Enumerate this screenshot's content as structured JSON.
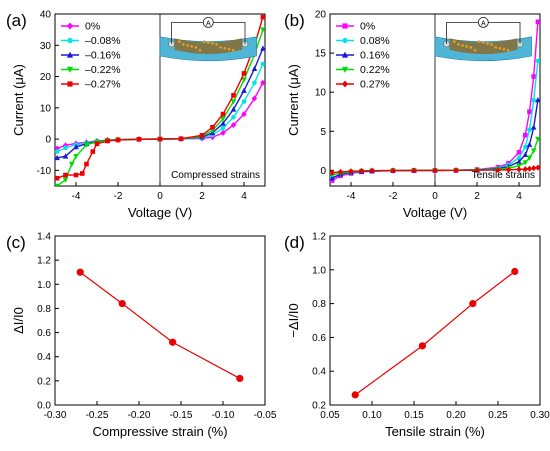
{
  "chart_data": [
    {
      "type": "line",
      "panel_label": "(a)",
      "xlabel": "Voltage (V)",
      "ylabel": "Current (μA)",
      "xlim": [
        -5,
        5
      ],
      "ylim": [
        -15,
        40
      ],
      "xticks": [
        -4,
        -2,
        0,
        2,
        4
      ],
      "yticks": [
        -10,
        0,
        10,
        20,
        30,
        40
      ],
      "annotation": "Compressed strains",
      "inset": "device-schematic",
      "legend_position": "top-left",
      "series": [
        {
          "name": "0%",
          "color": "#ff00ff",
          "marker": "diamond",
          "x": [
            -4.9,
            -4.5,
            -4,
            -3.5,
            -3,
            -2.5,
            -2,
            -1,
            0,
            1,
            2,
            2.5,
            3,
            3.5,
            4,
            4.5,
            4.9
          ],
          "y": [
            -3,
            -2,
            -1.4,
            -1,
            -0.6,
            -0.3,
            -0.15,
            -0.05,
            0,
            0.05,
            0.2,
            0.6,
            2,
            4.5,
            8,
            13,
            18
          ]
        },
        {
          "name": "–0.08%",
          "color": "#00e5e5",
          "marker": "circle",
          "x": [
            -4.9,
            -4.5,
            -4,
            -3.5,
            -3,
            -2.5,
            -2,
            -1,
            0,
            1,
            2,
            2.5,
            3,
            3.5,
            4,
            4.5,
            4.9
          ],
          "y": [
            -4,
            -2.8,
            -1.8,
            -1.2,
            -0.7,
            -0.4,
            -0.2,
            -0.05,
            0,
            0.08,
            0.4,
            1.3,
            3.5,
            7,
            12,
            18,
            24
          ]
        },
        {
          "name": "–0.16%",
          "color": "#1a1ad6",
          "marker": "triangle-up",
          "x": [
            -4.9,
            -4.5,
            -4,
            -3.5,
            -3,
            -2.5,
            -2,
            -1,
            0,
            1,
            2,
            2.5,
            3,
            3.5,
            4,
            4.5,
            4.9
          ],
          "y": [
            -6,
            -5.5,
            -2.5,
            -1.5,
            -0.8,
            -0.4,
            -0.2,
            -0.05,
            0,
            0.1,
            0.6,
            2,
            5,
            9.5,
            15.5,
            22.5,
            29
          ]
        },
        {
          "name": "–0.22%",
          "color": "#00dd00",
          "marker": "triangle-down",
          "x": [
            -4.9,
            -4.5,
            -4.2,
            -4,
            -3.5,
            -3,
            -2.5,
            -2,
            -1,
            0,
            1,
            2,
            2.5,
            3,
            3.5,
            4,
            4.5,
            4.9
          ],
          "y": [
            -15,
            -13,
            -8,
            -5.5,
            -1.8,
            -0.9,
            -0.4,
            -0.2,
            -0.05,
            0,
            0.1,
            0.8,
            2.8,
            6.5,
            12,
            19,
            27,
            35
          ]
        },
        {
          "name": "–0.27%",
          "color": "#ee0000",
          "marker": "square",
          "x": [
            -4.9,
            -4.5,
            -4,
            -3.7,
            -3.5,
            -3.2,
            -3,
            -2.5,
            -2,
            -1,
            0,
            1,
            2,
            2.5,
            3,
            3.5,
            4,
            4.5,
            4.9
          ],
          "y": [
            -12.5,
            -11.5,
            -11.5,
            -11,
            -8,
            -4,
            -1.5,
            -0.6,
            -0.3,
            -0.05,
            0,
            0.12,
            1.2,
            3.8,
            8,
            14,
            21,
            30,
            39
          ]
        }
      ]
    },
    {
      "type": "line",
      "panel_label": "(b)",
      "xlabel": "Voltage (V)",
      "ylabel": "Current (μA)",
      "xlim": [
        -5,
        5
      ],
      "ylim": [
        -2,
        20
      ],
      "xticks": [
        -4,
        -2,
        0,
        2,
        4
      ],
      "yticks": [
        0,
        5,
        10,
        15,
        20
      ],
      "annotation": "Tensile strains",
      "inset": "device-schematic",
      "legend_position": "top-left",
      "series": [
        {
          "name": "0%",
          "color": "#ff00ff",
          "marker": "square",
          "x": [
            -4.9,
            -4.5,
            -4,
            -3.5,
            -3,
            -2,
            -1,
            0,
            1,
            2,
            3,
            3.5,
            4,
            4.3,
            4.5,
            4.7,
            4.9
          ],
          "y": [
            -1.3,
            -0.7,
            -0.4,
            -0.2,
            -0.12,
            -0.05,
            -0.02,
            0,
            0.02,
            0.1,
            0.4,
            0.9,
            2.3,
            4.5,
            7.5,
            12,
            19
          ]
        },
        {
          "name": "0.08%",
          "color": "#00e5e5",
          "marker": "circle",
          "x": [
            -4.9,
            -4.5,
            -4,
            -3.5,
            -3,
            -2,
            -1,
            0,
            1,
            2,
            3,
            3.5,
            4,
            4.3,
            4.5,
            4.7,
            4.9
          ],
          "y": [
            -0.9,
            -0.55,
            -0.3,
            -0.17,
            -0.1,
            -0.04,
            -0.02,
            0,
            0.02,
            0.08,
            0.3,
            0.7,
            1.6,
            3,
            5.2,
            9,
            14
          ]
        },
        {
          "name": "0.16%",
          "color": "#1a1ad6",
          "marker": "triangle-up",
          "x": [
            -4.9,
            -4.5,
            -4,
            -3.5,
            -3,
            -2,
            -1,
            0,
            1,
            2,
            3,
            3.5,
            4,
            4.3,
            4.5,
            4.7,
            4.9
          ],
          "y": [
            -1,
            -0.5,
            -0.25,
            -0.15,
            -0.08,
            -0.03,
            -0.01,
            0,
            0.01,
            0.06,
            0.22,
            0.5,
            1.1,
            2,
            3.3,
            5.5,
            9
          ]
        },
        {
          "name": "0.22%",
          "color": "#00dd00",
          "marker": "triangle-down",
          "x": [
            -4.9,
            -4.5,
            -4,
            -3.5,
            -3,
            -2,
            -1,
            0,
            1,
            2,
            3,
            3.5,
            4,
            4.3,
            4.5,
            4.7,
            4.9
          ],
          "y": [
            -0.6,
            -0.35,
            -0.2,
            -0.1,
            -0.06,
            -0.02,
            -0.01,
            0,
            0.01,
            0.04,
            0.12,
            0.28,
            0.6,
            1,
            1.6,
            2.5,
            4
          ]
        },
        {
          "name": "0.27%",
          "color": "#ee0000",
          "marker": "diamond",
          "x": [
            -4.9,
            -4.5,
            -4,
            -3.5,
            -3,
            -2,
            -1,
            0,
            1,
            2,
            3,
            3.5,
            4,
            4.3,
            4.5,
            4.7,
            4.9
          ],
          "y": [
            -0.3,
            -0.2,
            -0.12,
            -0.07,
            -0.04,
            -0.02,
            -0.01,
            0,
            0.01,
            0.02,
            0.05,
            0.08,
            0.12,
            0.16,
            0.2,
            0.28,
            0.35
          ]
        }
      ]
    },
    {
      "type": "line",
      "panel_label": "(c)",
      "xlabel": "Compressive strain (%)",
      "ylabel": "ΔI/I0",
      "xlim": [
        -0.3,
        -0.05
      ],
      "ylim": [
        0.0,
        1.4
      ],
      "xticks": [
        -0.3,
        -0.25,
        -0.2,
        -0.15,
        -0.1,
        -0.05
      ],
      "xtick_labels": [
        "-0.30",
        "-0.25",
        "-0.20",
        "-0.15",
        "-0.10",
        "-0.05"
      ],
      "yticks": [
        0.0,
        0.2,
        0.4,
        0.6,
        0.8,
        1.0,
        1.2,
        1.4
      ],
      "ytick_labels": [
        "0.0",
        "0.2",
        "0.4",
        "0.6",
        "0.8",
        "1.0",
        "1.2",
        "1.4"
      ],
      "series": [
        {
          "color": "#ee0000",
          "marker": "circle",
          "x": [
            -0.27,
            -0.22,
            -0.16,
            -0.08
          ],
          "y": [
            1.1,
            0.84,
            0.52,
            0.22
          ]
        }
      ]
    },
    {
      "type": "line",
      "panel_label": "(d)",
      "xlabel": "Tensile strain (%)",
      "ylabel": "−ΔI/I0",
      "xlim": [
        0.05,
        0.3
      ],
      "ylim": [
        0.2,
        1.2
      ],
      "xticks": [
        0.05,
        0.1,
        0.15,
        0.2,
        0.25,
        0.3
      ],
      "xtick_labels": [
        "0.05",
        "0.10",
        "0.15",
        "0.20",
        "0.25",
        "0.30"
      ],
      "yticks": [
        0.2,
        0.4,
        0.6,
        0.8,
        1.0,
        1.2
      ],
      "ytick_labels": [
        "0.2",
        "0.4",
        "0.6",
        "0.8",
        "1.0",
        "1.2"
      ],
      "series": [
        {
          "color": "#ee0000",
          "marker": "circle",
          "x": [
            0.08,
            0.16,
            0.22,
            0.27
          ],
          "y": [
            0.26,
            0.55,
            0.8,
            0.99
          ]
        }
      ]
    }
  ]
}
